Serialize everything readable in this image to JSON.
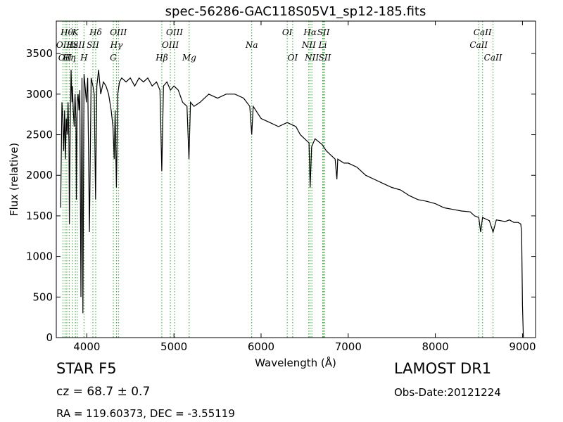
{
  "chart_data": {
    "type": "line",
    "title": "spec-56286-GAC118S05V1_sp12-185.fits",
    "xlabel": "Wavelength (Å)",
    "ylabel": "Flux (relative)",
    "xlim": [
      3650,
      9150
    ],
    "ylim": [
      0,
      3900
    ],
    "xticks": [
      4000,
      5000,
      6000,
      7000,
      8000,
      9000
    ],
    "yticks": [
      0,
      500,
      1000,
      1500,
      2000,
      2500,
      3000,
      3500
    ],
    "grid": false,
    "line_color": "#000000",
    "marker_color": "#2ca02c",
    "series": [
      {
        "x": [
          3700,
          3715,
          3725,
          3735,
          3745,
          3755,
          3765,
          3775,
          3785,
          3795,
          3800,
          3810,
          3820,
          3830,
          3835,
          3845,
          3855,
          3865,
          3875,
          3880,
          3890,
          3900,
          3910,
          3920,
          3933,
          3945,
          3955,
          3968,
          3980,
          3995,
          4010,
          4030,
          4050,
          4070,
          4085,
          4101,
          4115,
          4135,
          4160,
          4190,
          4220,
          4250,
          4280,
          4300,
          4315,
          4325,
          4340,
          4355,
          4375,
          4400,
          4450,
          4500,
          4550,
          4600,
          4650,
          4700,
          4750,
          4800,
          4840,
          4861,
          4880,
          4920,
          4960,
          5000,
          5050,
          5100,
          5150,
          5172,
          5190,
          5230,
          5300,
          5400,
          5500,
          5600,
          5700,
          5800,
          5870,
          5893,
          5910,
          6000,
          6100,
          6200,
          6300,
          6400,
          6450,
          6500,
          6550,
          6563,
          6580,
          6620,
          6700,
          6750,
          6800,
          6850,
          6870,
          6880,
          6950,
          7000,
          7100,
          7200,
          7300,
          7400,
          7500,
          7600,
          7700,
          7800,
          7900,
          8000,
          8100,
          8200,
          8300,
          8400,
          8450,
          8498,
          8520,
          8542,
          8580,
          8620,
          8662,
          8700,
          8750,
          8800,
          8850,
          8900,
          8950,
          8980,
          8990,
          9000,
          9010
        ],
        "y": [
          1600,
          2900,
          2700,
          2300,
          2800,
          2200,
          2700,
          2500,
          2900,
          2400,
          1400,
          2600,
          3300,
          2900,
          3100,
          2800,
          2600,
          3000,
          2700,
          1700,
          2900,
          3000,
          2800,
          3050,
          500,
          3200,
          300,
          3250,
          3100,
          2900,
          3200,
          1300,
          3200,
          3100,
          3000,
          1700,
          3100,
          3300,
          3000,
          3150,
          3100,
          3000,
          2800,
          2600,
          2200,
          2800,
          1850,
          3000,
          3150,
          3200,
          3150,
          3200,
          3100,
          3200,
          3150,
          3200,
          3100,
          3150,
          3050,
          2050,
          3100,
          3150,
          3050,
          3100,
          3050,
          2900,
          2850,
          2200,
          2900,
          2850,
          2900,
          3000,
          2950,
          3000,
          3000,
          2950,
          2850,
          2500,
          2850,
          2700,
          2650,
          2600,
          2650,
          2600,
          2500,
          2450,
          2400,
          1850,
          2350,
          2450,
          2380,
          2300,
          2250,
          2200,
          1950,
          2200,
          2150,
          2150,
          2100,
          2000,
          1950,
          1900,
          1850,
          1820,
          1750,
          1700,
          1680,
          1650,
          1600,
          1580,
          1560,
          1550,
          1500,
          1480,
          1300,
          1480,
          1460,
          1440,
          1300,
          1450,
          1440,
          1430,
          1450,
          1420,
          1420,
          1400,
          1300,
          400,
          0
        ]
      }
    ],
    "line_markers": [
      {
        "x": 3727,
        "label": "OII",
        "row": 2
      },
      {
        "x": 3750,
        "label": "OII",
        "row": 3
      },
      {
        "x": 3771,
        "label": "Hθ",
        "row": 1
      },
      {
        "x": 3798,
        "label": "Hη",
        "row": 3
      },
      {
        "x": 3835,
        "label": "Hε",
        "row": 2
      },
      {
        "x": 3869,
        "label": "K",
        "row": 1
      },
      {
        "x": 3890,
        "label": "ISII",
        "row": 2
      },
      {
        "x": 3968,
        "label": "H",
        "row": 3
      },
      {
        "x": 4070,
        "label": "SII",
        "row": 2
      },
      {
        "x": 4102,
        "label": "Hδ",
        "row": 1
      },
      {
        "x": 4304,
        "label": "G",
        "row": 3
      },
      {
        "x": 4340,
        "label": "Hγ",
        "row": 2
      },
      {
        "x": 4363,
        "label": "OIII",
        "row": 1
      },
      {
        "x": 4861,
        "label": "Hβ",
        "row": 3
      },
      {
        "x": 4959,
        "label": "OIII",
        "row": 2
      },
      {
        "x": 5007,
        "label": "OIII",
        "row": 1
      },
      {
        "x": 5175,
        "label": "Mg",
        "row": 3
      },
      {
        "x": 5893,
        "label": "Na",
        "row": 2
      },
      {
        "x": 6300,
        "label": "OI",
        "row": 1
      },
      {
        "x": 6363,
        "label": "OI",
        "row": 3
      },
      {
        "x": 6548,
        "label": "NII",
        "row": 2
      },
      {
        "x": 6563,
        "label": "Hα",
        "row": 1
      },
      {
        "x": 6583,
        "label": "NII",
        "row": 3
      },
      {
        "x": 6707,
        "label": "Li",
        "row": 2
      },
      {
        "x": 6716,
        "label": "SII",
        "row": 1
      },
      {
        "x": 6731,
        "label": "SII",
        "row": 3
      },
      {
        "x": 8498,
        "label": "CaII",
        "row": 2
      },
      {
        "x": 8542,
        "label": "CaII",
        "row": 1
      },
      {
        "x": 8662,
        "label": "CaII",
        "row": 3
      }
    ]
  },
  "info": {
    "class_label": "STAR   F5",
    "cz": "cz = 68.7 ± 0.7",
    "radec": "RA = 119.60373, DEC = -3.55119",
    "survey": "LAMOST DR1",
    "obs_date": "Obs-Date:20121224"
  }
}
